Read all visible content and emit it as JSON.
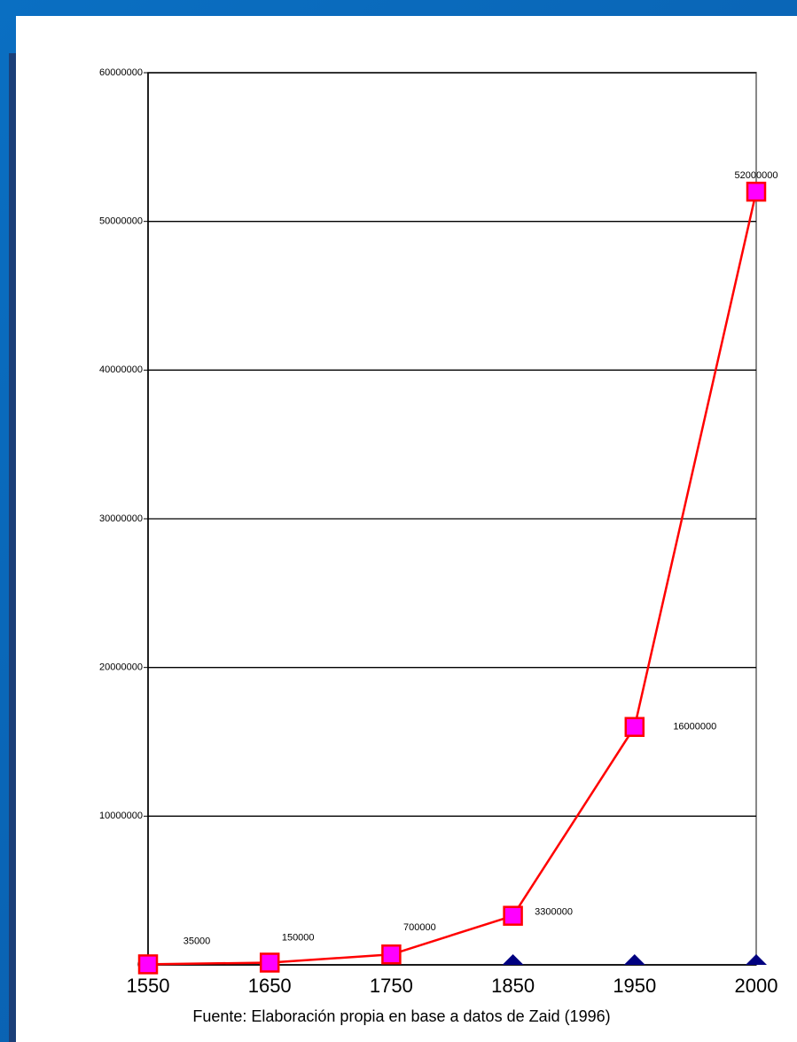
{
  "chart_data": {
    "type": "line",
    "caption": "Fuente: Elaboración propia en base a datos de Zaid (1996)",
    "categories": [
      "1550",
      "1650",
      "1750",
      "1850",
      "1950",
      "2000"
    ],
    "series": [
      {
        "color": "#ff0000",
        "marker_color": "#ff00ff",
        "marker": "square",
        "values": [
          35000,
          150000,
          700000,
          3300000,
          16000000,
          52000000
        ],
        "data_labels": true
      },
      {
        "color": "#000080",
        "marker": "triangle",
        "values": [
          null,
          null,
          null,
          0,
          0,
          0
        ],
        "data_labels": false
      }
    ],
    "ylim": [
      0,
      60000000
    ],
    "yticks": [
      0,
      10000000,
      20000000,
      30000000,
      40000000,
      50000000,
      60000000
    ],
    "grid": true
  }
}
